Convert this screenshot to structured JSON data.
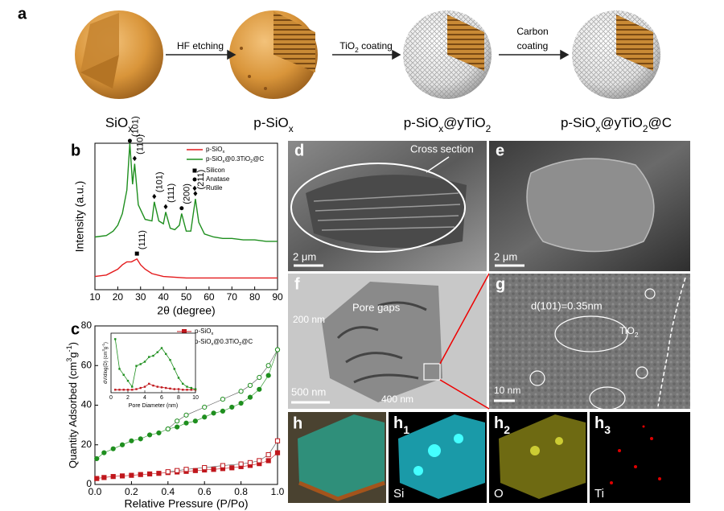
{
  "panel_a": {
    "letter": "a",
    "steps": [
      [
        "SiO",
        {
          "sub": "x"
        }
      ],
      [
        "p-SiO",
        {
          "sub": "x"
        }
      ],
      [
        "p-SiO",
        {
          "sub": "x"
        },
        "@yTiO",
        {
          "sub": "2"
        }
      ],
      [
        "p-SiO",
        {
          "sub": "x"
        },
        "@yTiO",
        {
          "sub": "2"
        },
        "@C"
      ]
    ],
    "arrows": [
      [
        [
          "HF etching"
        ]
      ],
      [
        [
          "TiO",
          {
            "sub": "2"
          },
          " coating"
        ]
      ],
      [
        [
          "Carbon"
        ],
        [
          "coating"
        ]
      ]
    ]
  },
  "panel_b": {
    "type": "line",
    "letter": "b",
    "x_label": "2θ (degree)",
    "y_label": "Intensity (a.u.)",
    "xlim": [
      10,
      90
    ],
    "xticks": [
      10,
      20,
      30,
      40,
      50,
      60,
      70,
      80,
      90
    ],
    "ylim": [
      0,
      100
    ],
    "series": [
      {
        "name": [
          "p-SiO",
          {
            "sub": "x"
          }
        ],
        "color": "#e41a1c",
        "x": [
          10,
          15,
          20,
          22,
          24,
          26,
          28.4,
          30,
          32,
          35,
          40,
          50,
          60,
          70,
          80,
          90
        ],
        "values": [
          9,
          10,
          14,
          17,
          19,
          19,
          21,
          17,
          14,
          11,
          9,
          8,
          8,
          8,
          8,
          8
        ]
      },
      {
        "name": [
          "p-SiO",
          {
            "sub": "x"
          },
          "@0.3TiO",
          {
            "sub": "2"
          },
          "@C"
        ],
        "color": "#1f8f1f",
        "x": [
          10,
          15,
          18,
          20,
          22,
          24,
          25.3,
          26.5,
          27.4,
          29,
          32,
          35,
          36,
          38,
          40,
          41,
          43,
          45,
          47,
          48,
          50,
          52,
          54,
          55.5,
          58,
          62,
          66,
          70,
          75,
          80,
          85,
          90
        ],
        "values": [
          36,
          37,
          40,
          44,
          52,
          68,
          100,
          72,
          86,
          58,
          48,
          47,
          60,
          47,
          45,
          53,
          42,
          41,
          44,
          52,
          40,
          40,
          62,
          46,
          38,
          36,
          35,
          35,
          34,
          34,
          33,
          33
        ]
      }
    ],
    "markers": [
      {
        "name": "Silicon",
        "symbol": "square"
      },
      {
        "name": "Anatase",
        "symbol": "circle"
      },
      {
        "name": "Rutile",
        "symbol": "diamond"
      }
    ],
    "peaks": [
      {
        "label": "(101)",
        "x": 25.3,
        "y": 100,
        "symbol": "circle"
      },
      {
        "label": "(110)",
        "x": 27.4,
        "y": 88,
        "symbol": "diamond"
      },
      {
        "label": "(101)",
        "x": 36,
        "y": 62,
        "symbol": "diamond"
      },
      {
        "label": "(111)",
        "x": 41,
        "y": 55,
        "symbol": "diamond"
      },
      {
        "label": "(200)",
        "x": 48,
        "y": 54,
        "symbol": "circle"
      },
      {
        "label": "(211)",
        "x": 54,
        "y": 64,
        "symbol": "diamond"
      },
      {
        "label": "(111)",
        "x": 28.4,
        "y": 23,
        "symbol": "square"
      }
    ]
  },
  "panel_c": {
    "type": "scatter",
    "letter": "c",
    "x_label": "Relative Pressure (P/Po)",
    "y_label": [
      "Quantity Adsorbed (cm",
      {
        "sup": "3"
      },
      "g",
      {
        "sup": "-1"
      },
      ")"
    ],
    "xlim": [
      0,
      1
    ],
    "xticks": [
      {
        "value": 0,
        "label": "0.0"
      },
      0.2,
      0.4,
      0.6,
      0.8,
      {
        "value": 1,
        "label": "1.0"
      }
    ],
    "ylim": [
      0,
      80
    ],
    "yticks": [
      0,
      20,
      40,
      60,
      80
    ],
    "series": [
      {
        "name": [
          "p-SiO",
          {
            "sub": "x"
          }
        ],
        "color": "#c0171c",
        "symbol": "square",
        "x": [
          0.01,
          0.05,
          0.1,
          0.15,
          0.2,
          0.25,
          0.3,
          0.35,
          0.4,
          0.45,
          0.5,
          0.55,
          0.6,
          0.65,
          0.7,
          0.75,
          0.8,
          0.85,
          0.9,
          0.95,
          1.0
        ],
        "values": [
          3,
          3.5,
          4,
          4.3,
          4.6,
          5,
          5.3,
          5.6,
          6,
          6.3,
          6.6,
          7,
          7.3,
          7.6,
          8,
          8.4,
          9,
          9.6,
          10.5,
          12,
          16
        ],
        "desorption_x": [
          1.0,
          0.95,
          0.9,
          0.85,
          0.8,
          0.7,
          0.6,
          0.5,
          0.45,
          0.4
        ],
        "desorption": [
          22,
          15,
          12,
          11,
          10.3,
          9.5,
          8.5,
          7.6,
          7,
          6.4
        ]
      },
      {
        "name": [
          "p-SiO",
          {
            "sub": "x"
          },
          "@0.3TiO",
          {
            "sub": "2"
          },
          "@C"
        ],
        "color": "#1f8f1f",
        "symbol": "circle",
        "x": [
          0.01,
          0.05,
          0.1,
          0.15,
          0.2,
          0.25,
          0.3,
          0.35,
          0.4,
          0.45,
          0.5,
          0.55,
          0.6,
          0.65,
          0.7,
          0.75,
          0.8,
          0.85,
          0.9,
          0.95,
          1.0
        ],
        "values": [
          13,
          16,
          18,
          20,
          22,
          23,
          25,
          26,
          28,
          29,
          31,
          32,
          34,
          36,
          37,
          39,
          41,
          44,
          48,
          55,
          68
        ],
        "desorption_x": [
          1.0,
          0.95,
          0.9,
          0.85,
          0.8,
          0.7,
          0.6,
          0.5,
          0.45,
          0.4
        ],
        "desorption": [
          68,
          60,
          54,
          50,
          47,
          43,
          39,
          35,
          32,
          28
        ]
      }
    ],
    "inset": {
      "type": "line",
      "x_label": "Pore Diameter (nm)",
      "y_label": [
        "dV/dlog(D) (cm",
        {
          "sup": "3"
        },
        "g",
        {
          "sup": "-1"
        },
        ")"
      ],
      "xlim": [
        0,
        10
      ],
      "xticks": [
        0,
        2,
        4,
        6,
        8,
        10
      ],
      "ylim": [
        0,
        100
      ],
      "series": [
        {
          "color": "#c0171c",
          "x": [
            0.5,
            1,
            1.5,
            2,
            2.5,
            3,
            3.5,
            4,
            4.5,
            5,
            5.5,
            6,
            6.5,
            7,
            7.5,
            8,
            8.5,
            9,
            9.5,
            10
          ],
          "values": [
            5,
            5,
            5,
            5,
            5,
            6,
            8,
            10,
            15,
            12,
            10,
            9,
            8,
            7,
            6,
            6,
            5,
            5,
            5,
            5
          ]
        },
        {
          "color": "#1f8f1f",
          "x": [
            0.5,
            1,
            1.5,
            2,
            2.5,
            3,
            3.5,
            4,
            4.5,
            5,
            5.5,
            6,
            6.5,
            7,
            7.5,
            8,
            8.5,
            9,
            9.5,
            10
          ],
          "values": [
            90,
            40,
            30,
            20,
            10,
            45,
            48,
            52,
            60,
            62,
            68,
            75,
            65,
            55,
            40,
            25,
            15,
            10,
            8,
            6
          ]
        }
      ]
    }
  },
  "panel_d": {
    "letter": "d",
    "annotation": "Cross section",
    "scale_bar": "2 μm"
  },
  "panel_e": {
    "letter": "e",
    "scale_bar": "2 μm"
  },
  "panel_f": {
    "letter": "f",
    "annotations": [
      "Pore gaps",
      "200 nm",
      "400 nm"
    ],
    "scale_bar": "500 nm"
  },
  "panel_g": {
    "letter": "g",
    "annotations": [
      "d(101)=0.35nm",
      [
        "TiO",
        {
          "sub": "2"
        }
      ]
    ],
    "scale_bar": "10 nm"
  },
  "panel_h": [
    {
      "letter": "h"
    },
    {
      "letter": [
        "h",
        {
          "sub": "1"
        }
      ],
      "element": "Si"
    },
    {
      "letter": [
        "h",
        {
          "sub": "2"
        }
      ],
      "element": "O"
    },
    {
      "letter": [
        "h",
        {
          "sub": "3"
        }
      ],
      "element": "Ti"
    }
  ]
}
